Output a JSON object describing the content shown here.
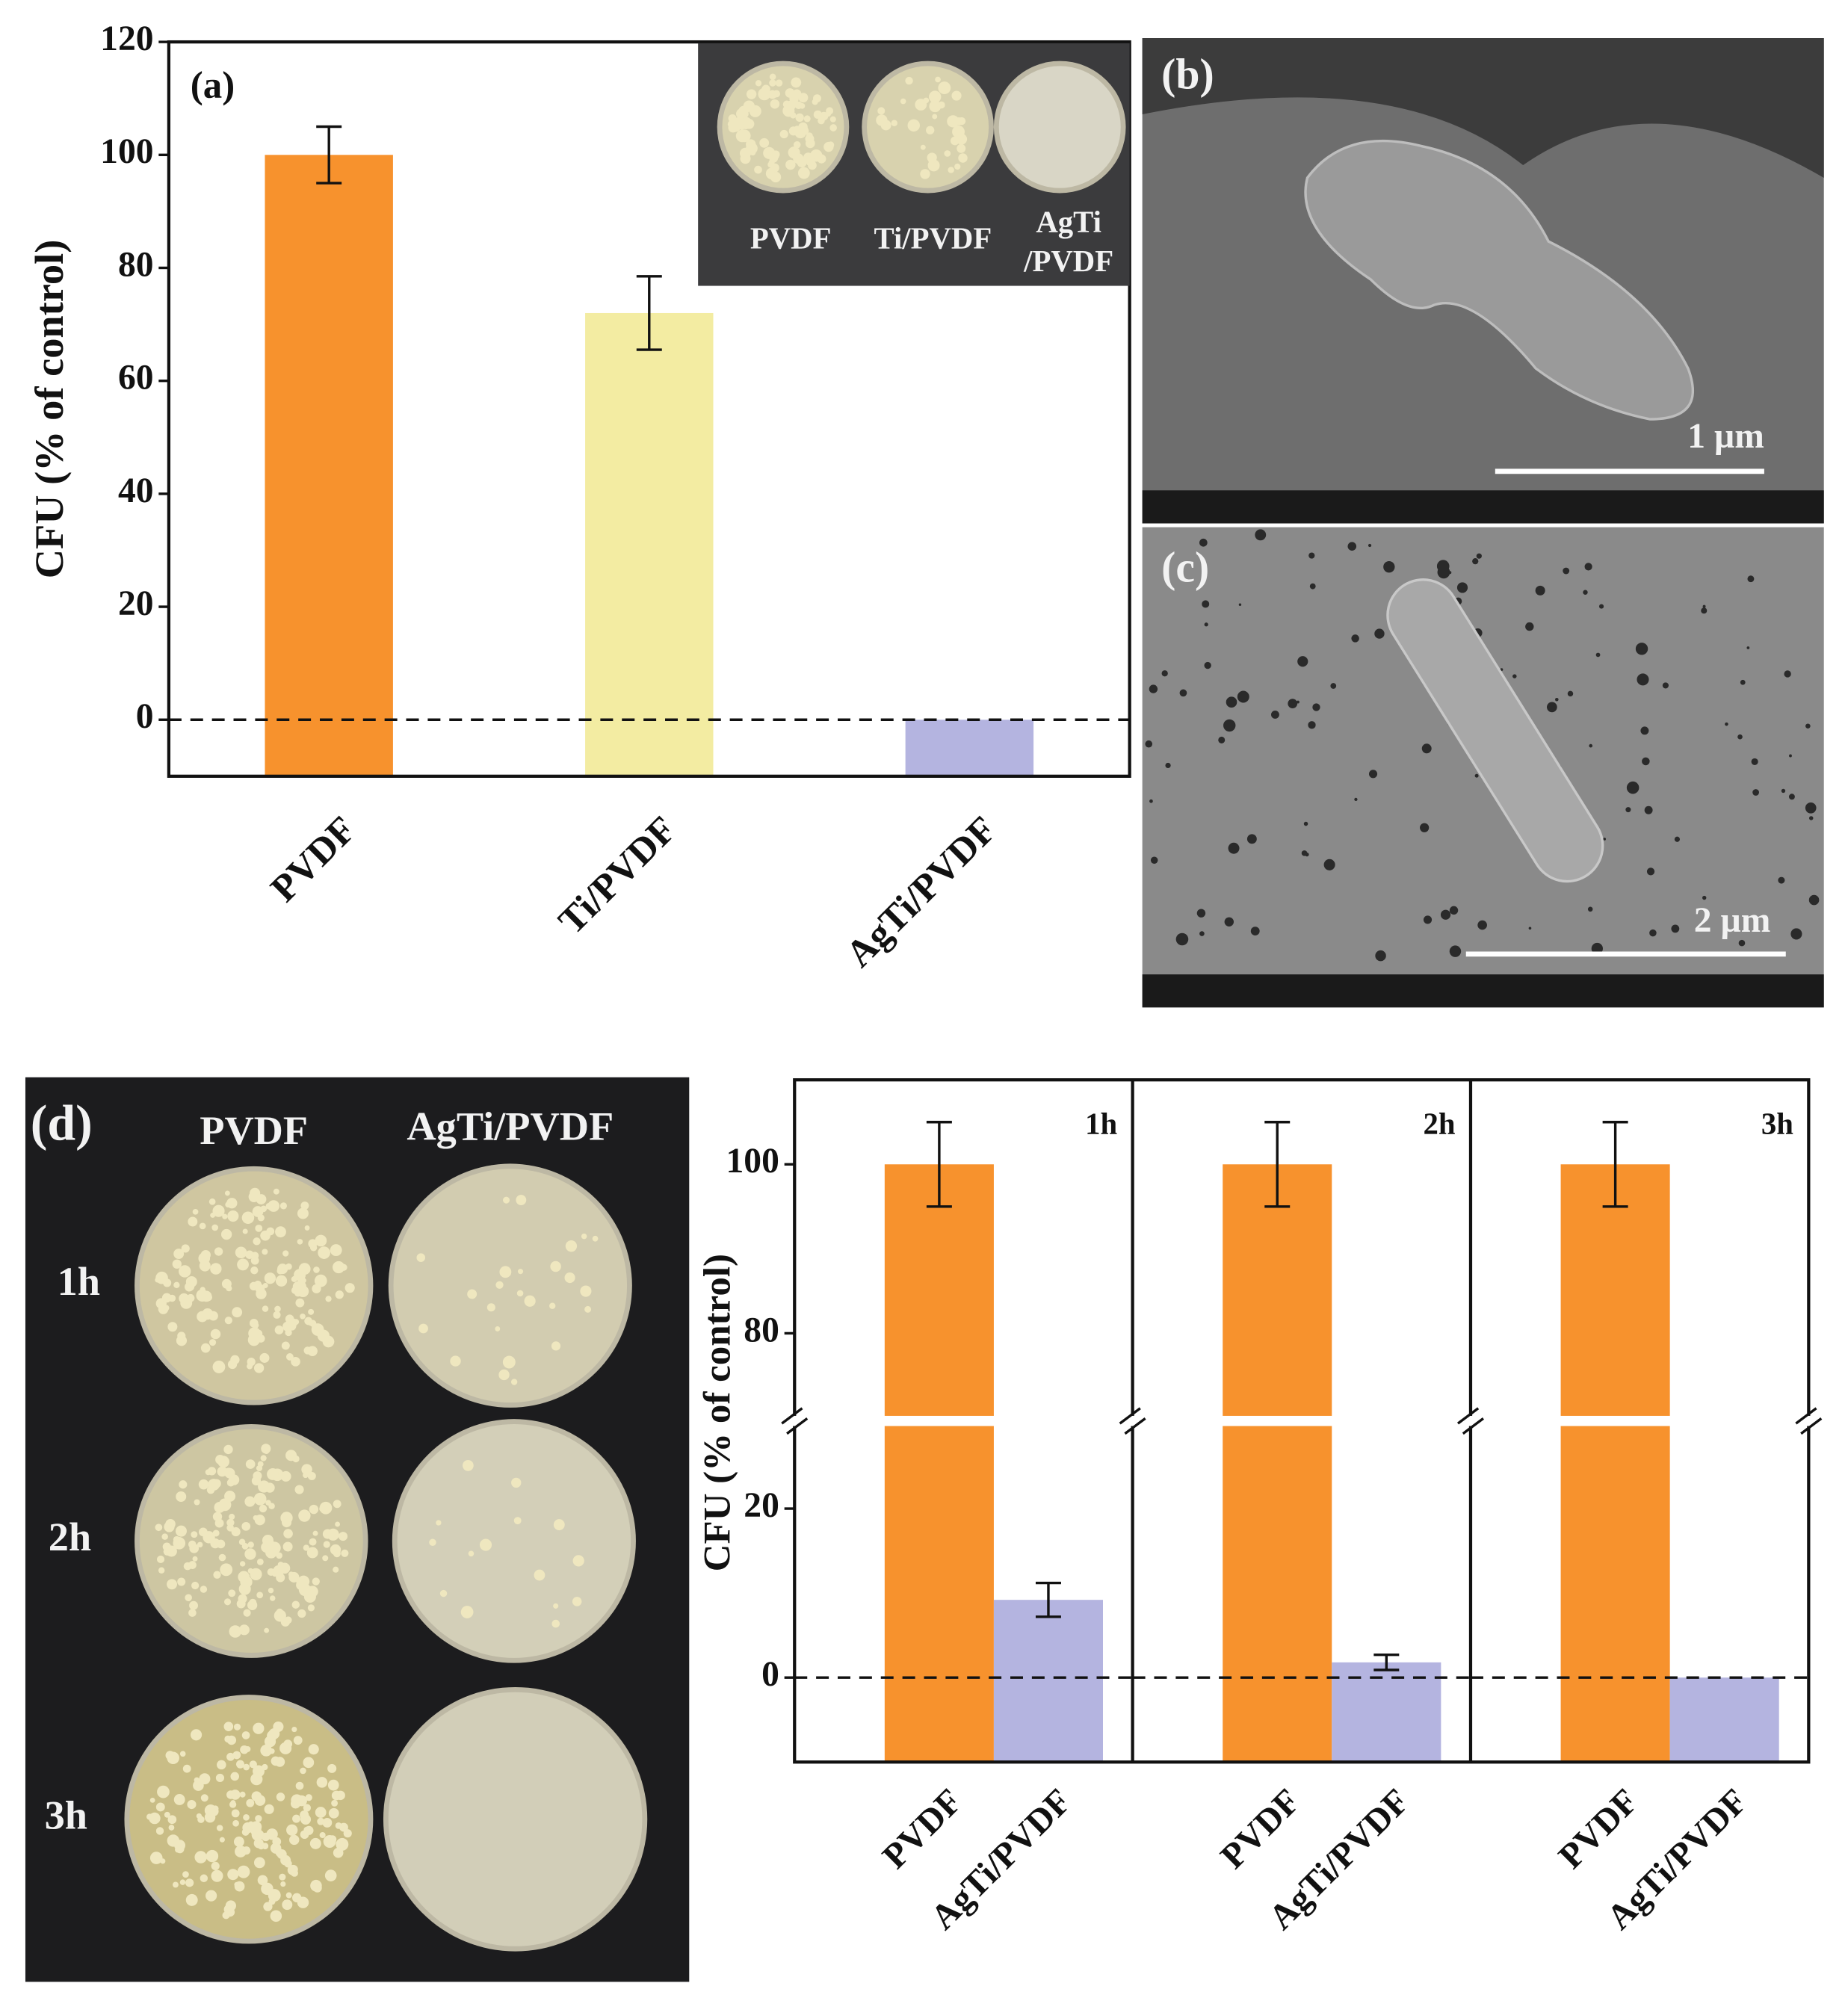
{
  "chart_data": [
    {
      "type": "bar",
      "annotation": "(a)",
      "ylabel": "CFU (% of control)",
      "categories": [
        "PVDF",
        "Ti/PVDF",
        "AgTi/PVDF"
      ],
      "values": [
        100,
        72,
        0
      ],
      "errors": [
        5,
        6.5,
        0
      ],
      "colors": [
        "#f7922d",
        "#f3eca2",
        "#b4b4e0"
      ],
      "ylim": [
        -10,
        120
      ],
      "yticks": [
        0,
        20,
        40,
        60,
        80,
        100,
        120
      ],
      "reference_line": 0,
      "inset_labels": [
        "PVDF",
        "Ti/PVDF",
        "AgTi",
        "/PVDF"
      ]
    },
    {
      "type": "bar",
      "ylabel": "CFU (% of control)",
      "categories": [
        "PVDF",
        "AgTi/PVDF"
      ],
      "colors": [
        "#f7922d",
        "#b4b4e0"
      ],
      "ylim": [
        -10,
        110
      ],
      "ybreak": [
        30,
        70
      ],
      "yticks": [
        0,
        20,
        80,
        100
      ],
      "reference_line": 0,
      "panels": [
        {
          "title": "1h",
          "values": [
            100,
            9.2
          ],
          "errors": [
            5,
            2
          ]
        },
        {
          "title": "2h",
          "values": [
            100,
            1.8
          ],
          "errors": [
            5,
            0.9
          ]
        },
        {
          "title": "3h",
          "values": [
            100,
            0
          ],
          "errors": [
            5,
            0
          ]
        }
      ]
    }
  ],
  "sem_b": {
    "label": "(b)",
    "scale": "1 µm"
  },
  "sem_c": {
    "label": "(c)",
    "scale": "2 µm"
  },
  "photo_d": {
    "label": "(d)",
    "columns": [
      "PVDF",
      "AgTi/PVDF"
    ],
    "rows": [
      "1h",
      "2h",
      "3h"
    ]
  }
}
